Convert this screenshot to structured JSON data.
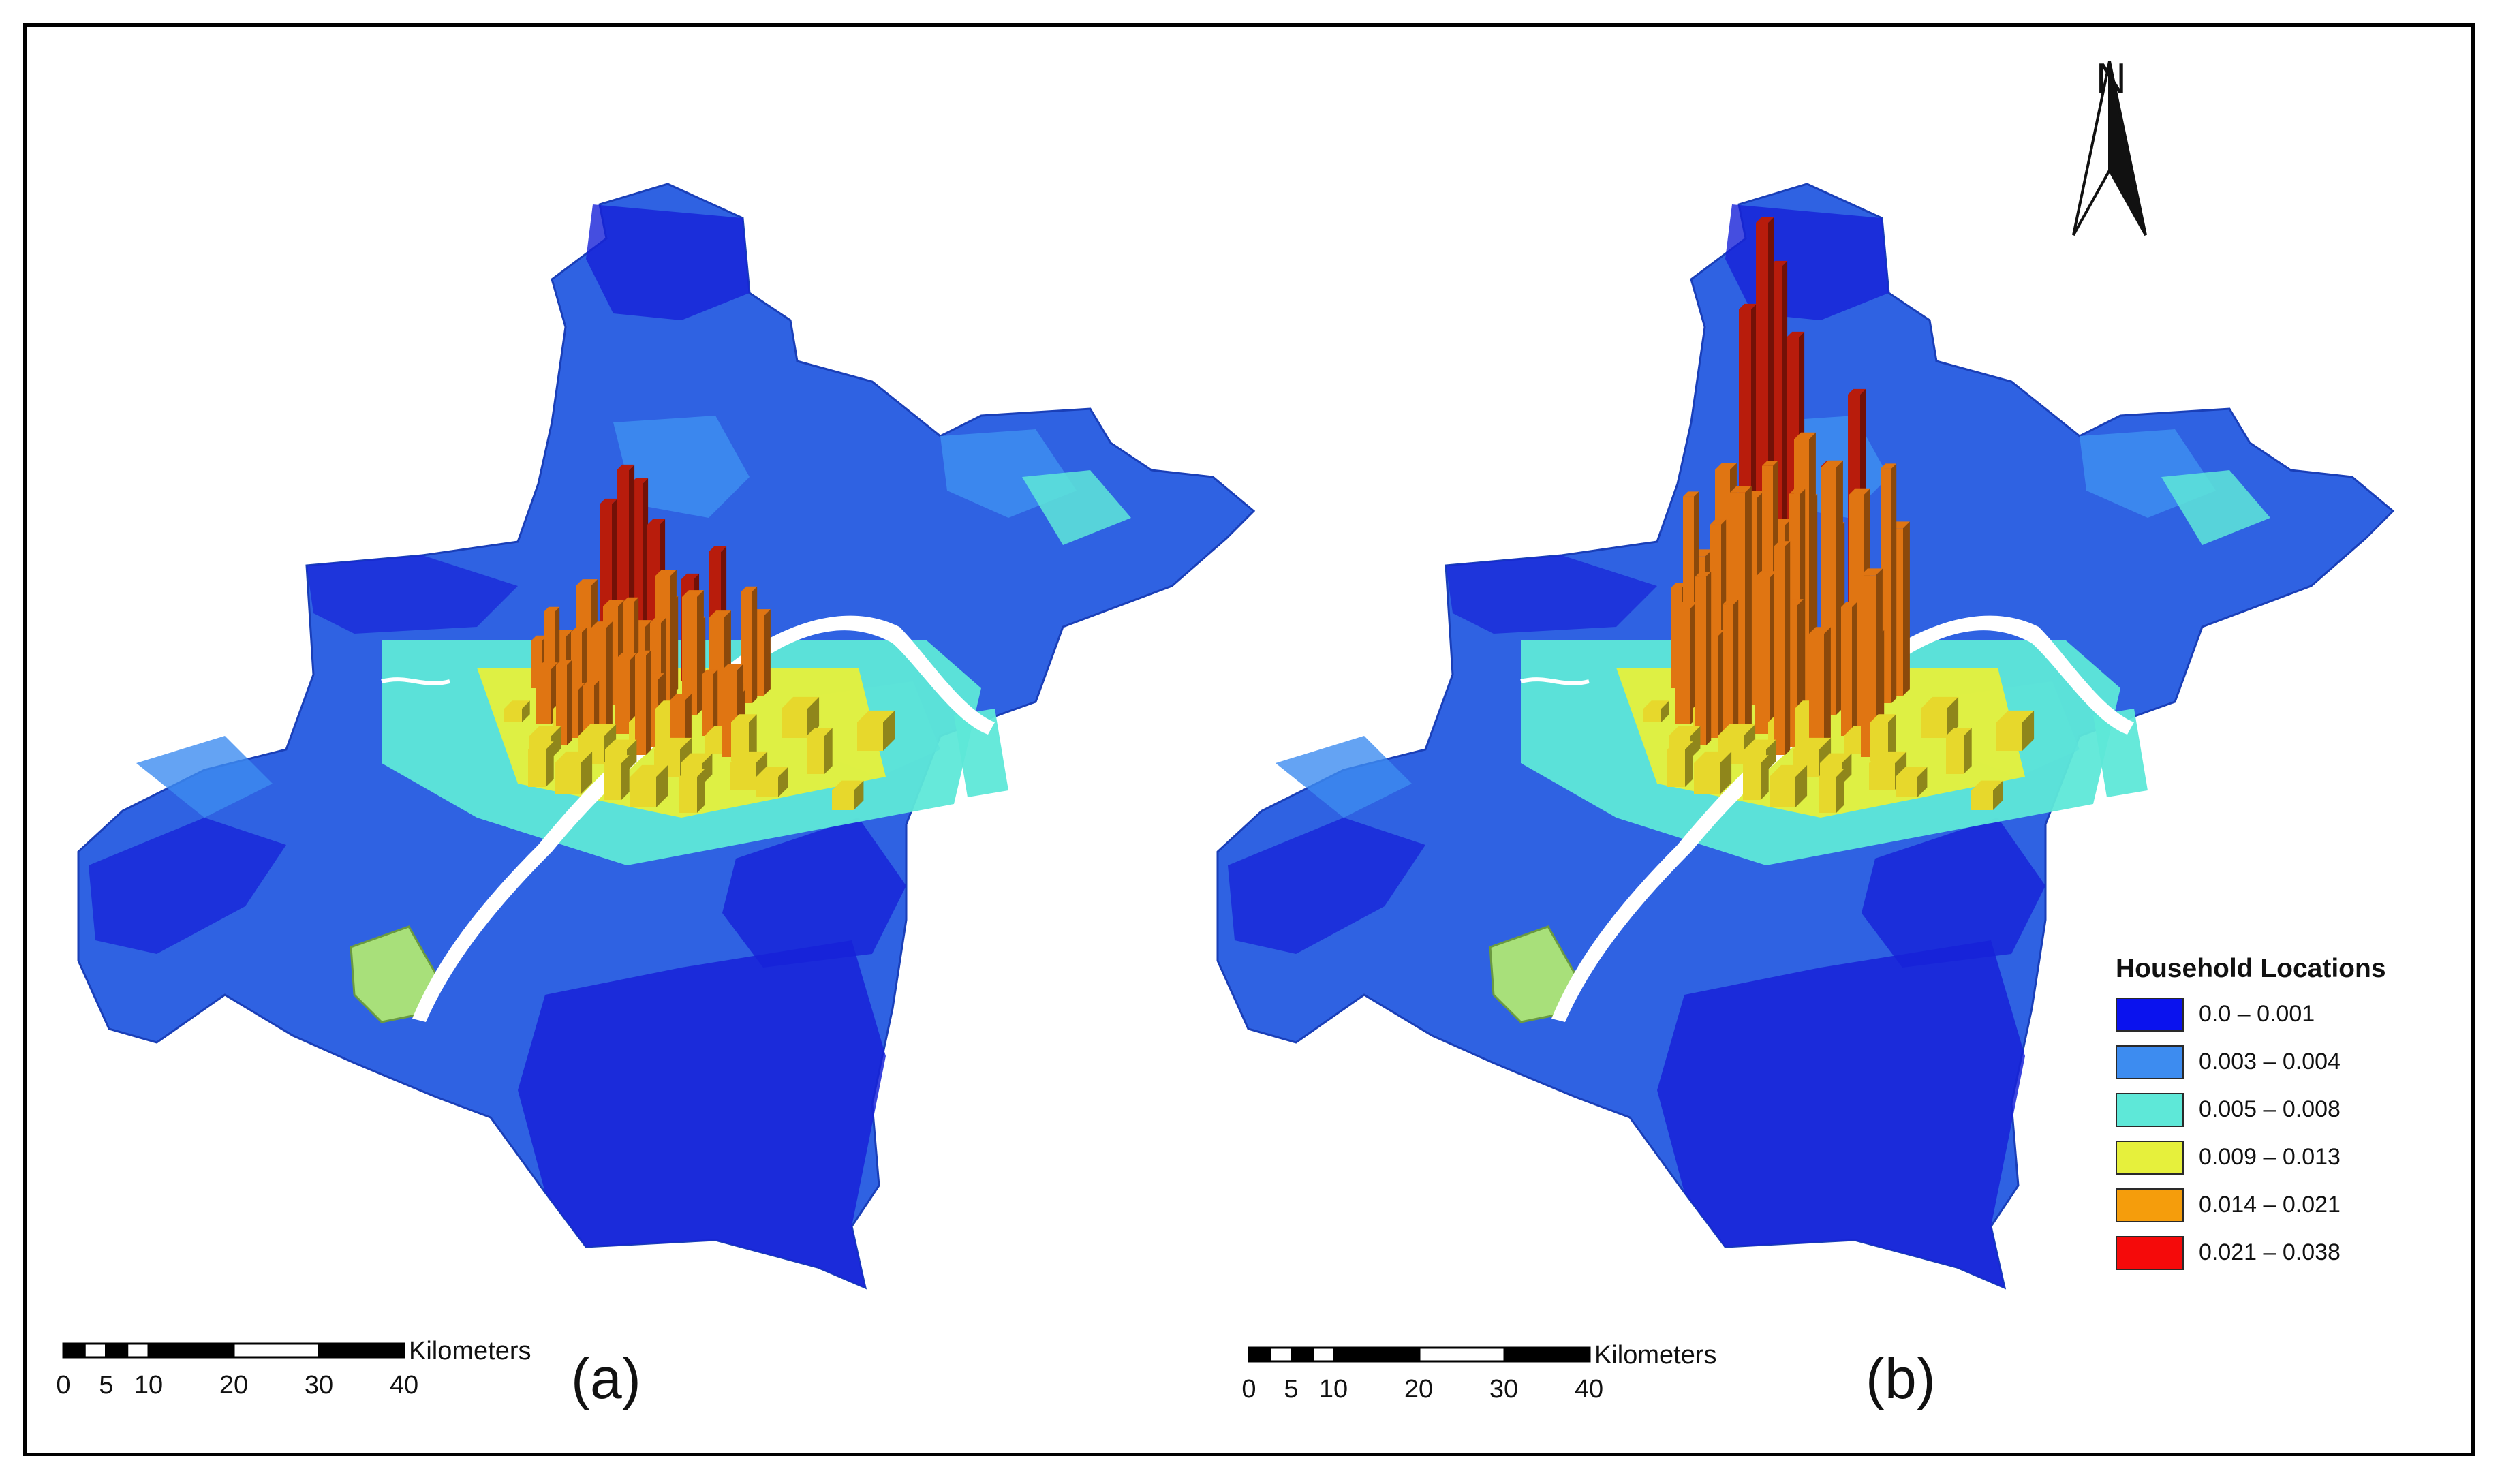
{
  "panels": [
    {
      "label": "(a)"
    },
    {
      "label": "(b)"
    }
  ],
  "scale_bar": {
    "unit": "Kilometers",
    "ticks": [
      "0",
      "5",
      "10",
      "20",
      "30",
      "40"
    ]
  },
  "north_arrow": {
    "label": "N"
  },
  "legend": {
    "title": "Household Locations",
    "classes": [
      {
        "label": "0.0 – 0.001",
        "color": "#0a12ee"
      },
      {
        "label": "0.003 – 0.004",
        "color": "#3d8cf0"
      },
      {
        "label": "0.005 – 0.008",
        "color": "#5ee8d8"
      },
      {
        "label": "0.009 – 0.013",
        "color": "#e6f03c"
      },
      {
        "label": "0.014 – 0.021",
        "color": "#f59d0c"
      },
      {
        "label": "0.021 – 0.038",
        "color": "#f50a0a"
      }
    ]
  },
  "colors": {
    "river": "#ffffff",
    "region_fill": "#2f62e2",
    "region_dark": "#1722d8",
    "bar_red": "#b81c0c",
    "bar_orange": "#e07512",
    "bar_yellow": "#e7d82c"
  }
}
